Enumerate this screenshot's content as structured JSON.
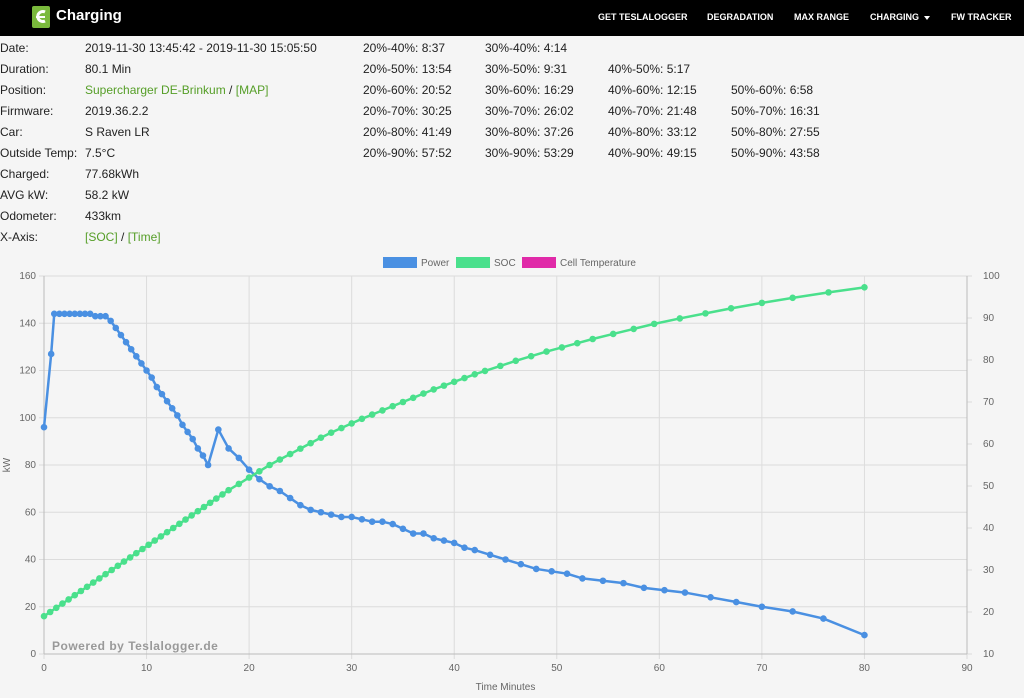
{
  "header": {
    "title": "Charging",
    "nav": [
      {
        "label": "GET TESLALOGGER"
      },
      {
        "label": "DEGRADATION"
      },
      {
        "label": "MAX RANGE"
      },
      {
        "label": "CHARGING"
      },
      {
        "label": "FW TRACKER"
      }
    ]
  },
  "info": {
    "date": {
      "label": "Date:",
      "value": "2019-11-30 13:45:42 - 2019-11-30 15:05:50"
    },
    "duration": {
      "label": "Duration:",
      "value": "80.1 Min"
    },
    "position": {
      "label": "Position:",
      "value": "Supercharger DE-Brinkum",
      "sep": " / ",
      "link": "[MAP]"
    },
    "firmware": {
      "label": "Firmware:",
      "value": "2019.36.2.2"
    },
    "car": {
      "label": "Car:",
      "value": "S Raven LR"
    },
    "outside_temp": {
      "label": "Outside Temp:",
      "value": "7.5°C"
    },
    "charged": {
      "label": "Charged:",
      "value": "77.68kWh"
    },
    "avg_kw": {
      "label": "AVG kW:",
      "value": "58.2 kW"
    },
    "odometer": {
      "label": "Odometer:",
      "value": "433km"
    },
    "x_axis": {
      "label": "X-Axis:",
      "opt1": "[SOC]",
      "sep": " / ",
      "opt2": "[Time]"
    }
  },
  "durations": [
    [
      "20%-40%: 8:37",
      "30%-40%: 4:14",
      "",
      ""
    ],
    [
      "20%-50%: 13:54",
      "30%-50%: 9:31",
      "40%-50%: 5:17",
      ""
    ],
    [
      "20%-60%: 20:52",
      "30%-60%: 16:29",
      "40%-60%: 12:15",
      "50%-60%: 6:58"
    ],
    [
      "20%-70%: 30:25",
      "30%-70%: 26:02",
      "40%-70%: 21:48",
      "50%-70%: 16:31"
    ],
    [
      "20%-80%: 41:49",
      "30%-80%: 37:26",
      "40%-80%: 33:12",
      "50%-80%: 27:55"
    ],
    [
      "20%-90%: 57:52",
      "30%-90%: 53:29",
      "40%-90%: 49:15",
      "50%-90%: 43:58"
    ]
  ],
  "chart_data": {
    "type": "line",
    "xlabel": "Time Minutes",
    "ylabel": "kW",
    "xlim": [
      0,
      90
    ],
    "ylim_left": [
      0,
      160
    ],
    "ylim_right": [
      10,
      100
    ],
    "x_ticks": [
      0,
      10,
      20,
      30,
      40,
      50,
      60,
      70,
      80,
      90
    ],
    "y_left_ticks": [
      0,
      20,
      40,
      60,
      80,
      100,
      120,
      140,
      160
    ],
    "y_right_ticks": [
      10,
      20,
      30,
      40,
      50,
      60,
      70,
      80,
      90,
      100
    ],
    "grid": true,
    "legend": "top-center",
    "watermark": "Powered by Teslalogger.de",
    "series": [
      {
        "name": "Power",
        "axis": "left",
        "color": "#4a90e2",
        "x": [
          0,
          0.7,
          1.0,
          1.5,
          2.0,
          2.5,
          3.0,
          3.5,
          4.0,
          4.5,
          5.0,
          5.5,
          6.0,
          6.5,
          7.0,
          7.5,
          8.0,
          8.5,
          9.0,
          9.5,
          10.0,
          10.5,
          11.0,
          11.5,
          12.0,
          12.5,
          13.0,
          13.5,
          14.0,
          14.5,
          15.0,
          15.5,
          16.0,
          17.0,
          18.0,
          19.0,
          20.0,
          21.0,
          22.0,
          23.0,
          24.0,
          25.0,
          26.0,
          27.0,
          28.0,
          29.0,
          30.0,
          31.0,
          32.0,
          33.0,
          34.0,
          35.0,
          36.0,
          37.0,
          38.0,
          39.0,
          40.0,
          41.0,
          42.0,
          43.5,
          45.0,
          46.5,
          48.0,
          49.5,
          51.0,
          52.5,
          54.5,
          56.5,
          58.5,
          60.5,
          62.5,
          65.0,
          67.5,
          70.0,
          73.0,
          76.0,
          80.0
        ],
        "values": [
          96,
          127,
          144,
          144,
          144,
          144,
          144,
          144,
          144,
          144,
          143,
          143,
          143,
          141,
          138,
          135,
          132,
          129,
          126,
          123,
          120,
          117,
          113,
          110,
          107,
          104,
          101,
          97,
          94,
          91,
          87,
          84,
          80,
          95,
          87,
          83,
          78,
          74,
          71,
          69,
          66,
          63,
          61,
          60,
          59,
          58,
          58,
          57,
          56,
          56,
          55,
          53,
          51,
          51,
          49,
          48,
          47,
          45,
          44,
          42,
          40,
          38,
          36,
          35,
          34,
          32,
          31,
          30,
          28,
          27,
          26,
          24,
          22,
          20,
          18,
          15,
          8
        ]
      },
      {
        "name": "SOC",
        "axis": "right",
        "color": "#4ae08c",
        "x": [
          0,
          0.6,
          1.2,
          1.8,
          2.4,
          3.0,
          3.6,
          4.2,
          4.8,
          5.4,
          6.0,
          6.6,
          7.2,
          7.8,
          8.4,
          9.0,
          9.6,
          10.2,
          10.8,
          11.4,
          12.0,
          12.6,
          13.2,
          13.8,
          14.4,
          15.0,
          15.6,
          16.2,
          16.8,
          17.4,
          18.0,
          19.0,
          20.0,
          21.0,
          22.0,
          23.0,
          24.0,
          25.0,
          26.0,
          27.0,
          28.0,
          29.0,
          30.0,
          31.0,
          32.0,
          33.0,
          34.0,
          35.0,
          36.0,
          37.0,
          38.0,
          39.0,
          40.0,
          41.0,
          42.0,
          43.0,
          44.5,
          46.0,
          47.5,
          49.0,
          50.5,
          52.0,
          53.5,
          55.5,
          57.5,
          59.5,
          62.0,
          64.5,
          67.0,
          70.0,
          73.0,
          76.5,
          80.0
        ],
        "values": [
          19.0,
          20.0,
          21.0,
          22.0,
          23.0,
          24.0,
          25.0,
          26.0,
          27.0,
          28.0,
          29.0,
          30.0,
          31.0,
          32.0,
          33.0,
          34.0,
          35.0,
          36.0,
          37.0,
          38.0,
          39.0,
          40.0,
          41.0,
          42.0,
          43.0,
          44.0,
          45.0,
          46.0,
          47.0,
          48.0,
          49.0,
          50.5,
          52.0,
          53.5,
          55.0,
          56.3,
          57.6,
          58.9,
          60.2,
          61.5,
          62.7,
          63.8,
          64.9,
          66.0,
          67.0,
          68.0,
          69.0,
          70.0,
          71.0,
          72.0,
          73.0,
          73.9,
          74.8,
          75.7,
          76.6,
          77.4,
          78.6,
          79.8,
          80.9,
          82.0,
          83.0,
          84.0,
          85.0,
          86.2,
          87.4,
          88.6,
          89.9,
          91.1,
          92.3,
          93.6,
          94.8,
          96.1,
          97.3
        ]
      },
      {
        "name": "Cell Temperature",
        "axis": "right",
        "color": "#e02aa8",
        "x": [],
        "values": []
      }
    ]
  }
}
